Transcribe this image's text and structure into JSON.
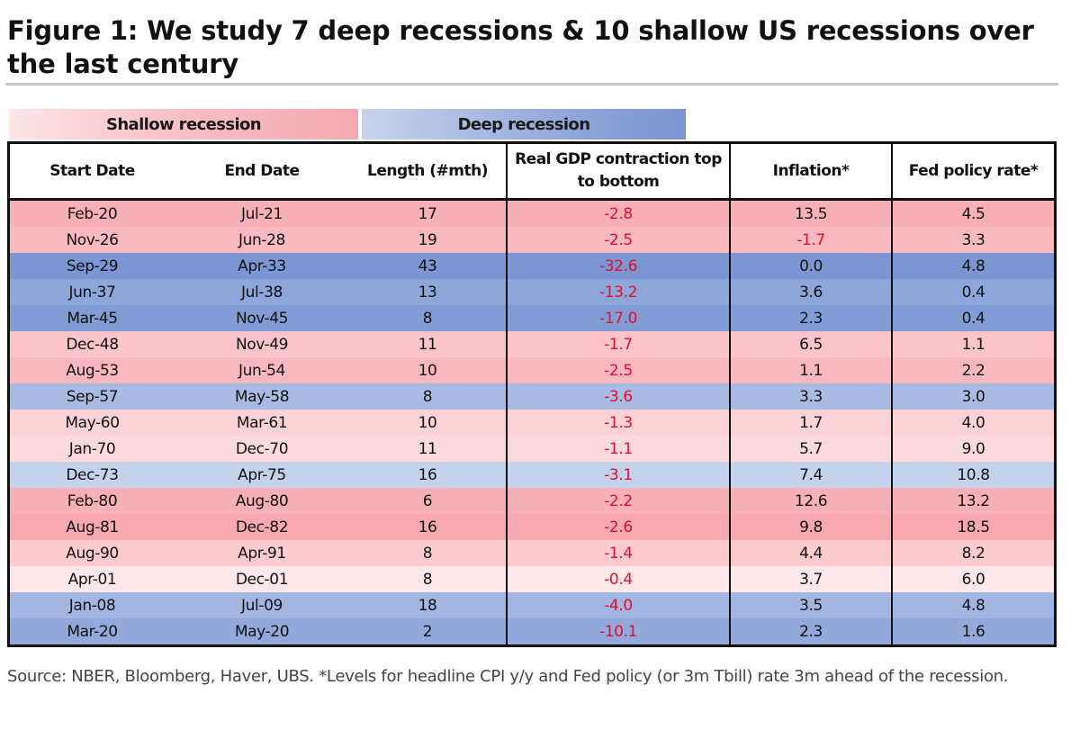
{
  "title": "Figure 1: We study 7 deep recessions & 10 shallow US recessions over the last century",
  "legend": {
    "shallow_label": "Shallow recession",
    "deep_label": "Deep recession"
  },
  "columns": [
    "Start Date",
    "End Date",
    "Length (#mth)",
    "Real GDP contraction top to bottom",
    "Inflation*",
    "Fed policy rate*"
  ],
  "rows": [
    {
      "start": "Feb-20",
      "end": "Jul-21",
      "length": "17",
      "gdp": "-2.8",
      "inflation": "13.5",
      "fed": "4.5",
      "color": "#f8b0b8"
    },
    {
      "start": "Nov-26",
      "end": "Jun-28",
      "length": "19",
      "gdp": "-2.5",
      "inflation": "-1.7",
      "fed": "3.3",
      "color": "#f9b9c0"
    },
    {
      "start": "Sep-29",
      "end": "Apr-33",
      "length": "43",
      "gdp": "-32.6",
      "inflation": "0.0",
      "fed": "4.8",
      "color": "#7b96d3"
    },
    {
      "start": "Jun-37",
      "end": "Jul-38",
      "length": "13",
      "gdp": "-13.2",
      "inflation": "3.6",
      "fed": "0.4",
      "color": "#8ea6da"
    },
    {
      "start": "Mar-45",
      "end": "Nov-45",
      "length": "8",
      "gdp": "-17.0",
      "inflation": "2.3",
      "fed": "0.4",
      "color": "#829cd6"
    },
    {
      "start": "Dec-48",
      "end": "Nov-49",
      "length": "11",
      "gdp": "-1.7",
      "inflation": "6.5",
      "fed": "1.1",
      "color": "#fac4ca"
    },
    {
      "start": "Aug-53",
      "end": "Jun-54",
      "length": "10",
      "gdp": "-2.5",
      "inflation": "1.1",
      "fed": "2.2",
      "color": "#f9b7bf"
    },
    {
      "start": "Sep-57",
      "end": "May-58",
      "length": "8",
      "gdp": "-3.6",
      "inflation": "3.3",
      "fed": "3.0",
      "color": "#a9bbe3"
    },
    {
      "start": "May-60",
      "end": "Mar-61",
      "length": "10",
      "gdp": "-1.3",
      "inflation": "1.7",
      "fed": "4.0",
      "color": "#fbd3d7"
    },
    {
      "start": "Jan-70",
      "end": "Dec-70",
      "length": "11",
      "gdp": "-1.1",
      "inflation": "5.7",
      "fed": "9.0",
      "color": "#fcd9dd"
    },
    {
      "start": "Dec-73",
      "end": "Apr-75",
      "length": "16",
      "gdp": "-3.1",
      "inflation": "7.4",
      "fed": "10.8",
      "color": "#c5d2ec"
    },
    {
      "start": "Feb-80",
      "end": "Aug-80",
      "length": "6",
      "gdp": "-2.2",
      "inflation": "12.6",
      "fed": "13.2",
      "color": "#f8b0b8"
    },
    {
      "start": "Aug-81",
      "end": "Dec-82",
      "length": "16",
      "gdp": "-2.6",
      "inflation": "9.8",
      "fed": "18.5",
      "color": "#f7a8b1"
    },
    {
      "start": "Aug-90",
      "end": "Apr-91",
      "length": "8",
      "gdp": "-1.4",
      "inflation": "4.4",
      "fed": "8.2",
      "color": "#fbcbd0"
    },
    {
      "start": "Apr-01",
      "end": "Dec-01",
      "length": "8",
      "gdp": "-0.4",
      "inflation": "3.7",
      "fed": "6.0",
      "color": "#fde7e9"
    },
    {
      "start": "Jan-08",
      "end": "Jul-09",
      "length": "18",
      "gdp": "-4.0",
      "inflation": "3.5",
      "fed": "4.8",
      "color": "#a3b6e1"
    },
    {
      "start": "Mar-20",
      "end": "May-20",
      "length": "2",
      "gdp": "-10.1",
      "inflation": "2.3",
      "fed": "1.6",
      "color": "#93a9dc"
    }
  ],
  "source": "Source: NBER, Bloomberg, Haver, UBS. *Levels for headline CPI y/y and Fed policy (or 3m Tbill) rate 3m ahead of the recession."
}
